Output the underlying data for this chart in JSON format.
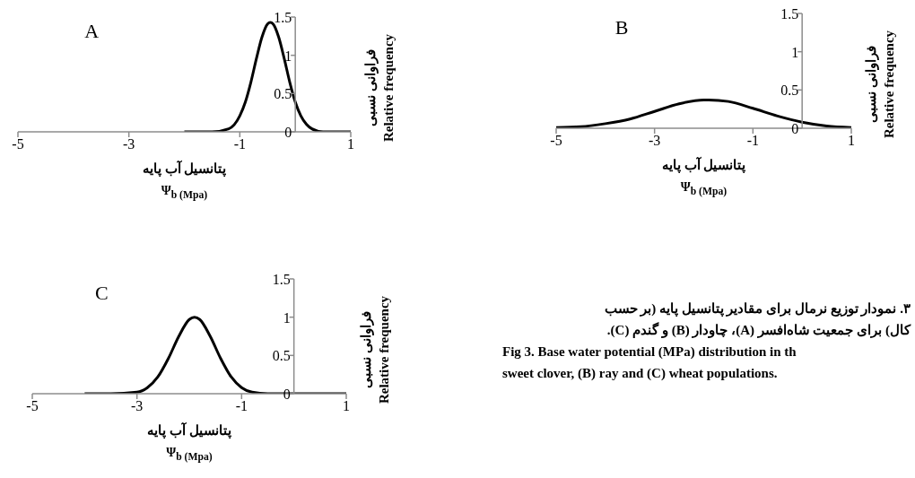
{
  "chart_data": [
    {
      "type": "line",
      "title": "A",
      "xlabel": "پتانسیل آب پایه\nΨ$_{b (Mpa)}$",
      "ylabel": "فراوانی نسبی\nRelative frequency",
      "xlim": [
        -5,
        1
      ],
      "xticks": [
        -5,
        -3,
        -1,
        1
      ],
      "ylim": [
        0,
        1.5
      ],
      "yticks": [
        0,
        0.5,
        1,
        1.5
      ],
      "marker": "none",
      "line_style": "solid",
      "series": [
        {
          "color": "#000000",
          "x": [
            -2,
            -1.5,
            -1.2,
            -1.0,
            -0.9,
            -0.8,
            -0.7,
            -0.6,
            -0.5,
            -0.45,
            -0.4,
            -0.3,
            -0.2,
            -0.1,
            0,
            0.1,
            0.2,
            0.3,
            0.5,
            1
          ],
          "values": [
            0,
            0,
            0.04,
            0.21,
            0.39,
            0.65,
            0.96,
            1.24,
            1.41,
            1.43,
            1.41,
            1.24,
            0.96,
            0.65,
            0.39,
            0.21,
            0.1,
            0.04,
            0,
            0
          ]
        }
      ]
    },
    {
      "type": "line",
      "title": "B",
      "xlabel": "پتانسیل آب پایه\nΨ$_{b (Mpa)}$",
      "ylabel": "فراوانی نسبی\nRelative frequency",
      "xlim": [
        -5,
        1
      ],
      "xticks": [
        -5,
        -3,
        -1,
        1
      ],
      "ylim": [
        0,
        1.5
      ],
      "yticks": [
        0,
        0.5,
        1,
        1.5
      ],
      "marker": "none",
      "line_style": "solid",
      "series": [
        {
          "color": "#000000",
          "x": [
            -5,
            -4.5,
            -4,
            -3.5,
            -3,
            -2.5,
            -2,
            -1.9,
            -1.5,
            -1,
            -0.5,
            0,
            0.5,
            1
          ],
          "values": [
            0.01,
            0.02,
            0.06,
            0.12,
            0.22,
            0.32,
            0.37,
            0.37,
            0.35,
            0.26,
            0.16,
            0.08,
            0.03,
            0.01
          ]
        }
      ]
    },
    {
      "type": "line",
      "title": "C",
      "xlabel": "پتانسیل آب پایه\nΨ$_{b (Mpa)}$",
      "ylabel": "فراوانی نسبی\nRelative frequency",
      "xlim": [
        -5,
        1
      ],
      "xticks": [
        -5,
        -3,
        -1,
        1
      ],
      "ylim": [
        0,
        1.5
      ],
      "yticks": [
        0,
        0.5,
        1,
        1.5
      ],
      "marker": "none",
      "line_style": "solid",
      "series": [
        {
          "color": "#000000",
          "x": [
            -4,
            -3.5,
            -3,
            -2.8,
            -2.6,
            -2.4,
            -2.2,
            -2.0,
            -1.9,
            -1.8,
            -1.6,
            -1.4,
            -1.2,
            -1.0,
            -0.8,
            -0.5,
            0,
            1
          ],
          "values": [
            0,
            0,
            0.02,
            0.08,
            0.22,
            0.46,
            0.75,
            0.97,
            1.0,
            0.97,
            0.75,
            0.46,
            0.22,
            0.08,
            0.02,
            0,
            0,
            0
          ]
        }
      ]
    },
    {
      "type": "other",
      "annotations": [
        "۳. نمودار توزیع نرمال برای مقادیر پتانسیل پایه (بر حسب",
        "کال) برای جمعیت شاه‌افسر (A)، چاودار (B) و گندم (C).",
        "Fig 3. Base water potential (MPa) distribution in th",
        "sweet clover, (B) ray and (C) wheat populations."
      ]
    }
  ]
}
